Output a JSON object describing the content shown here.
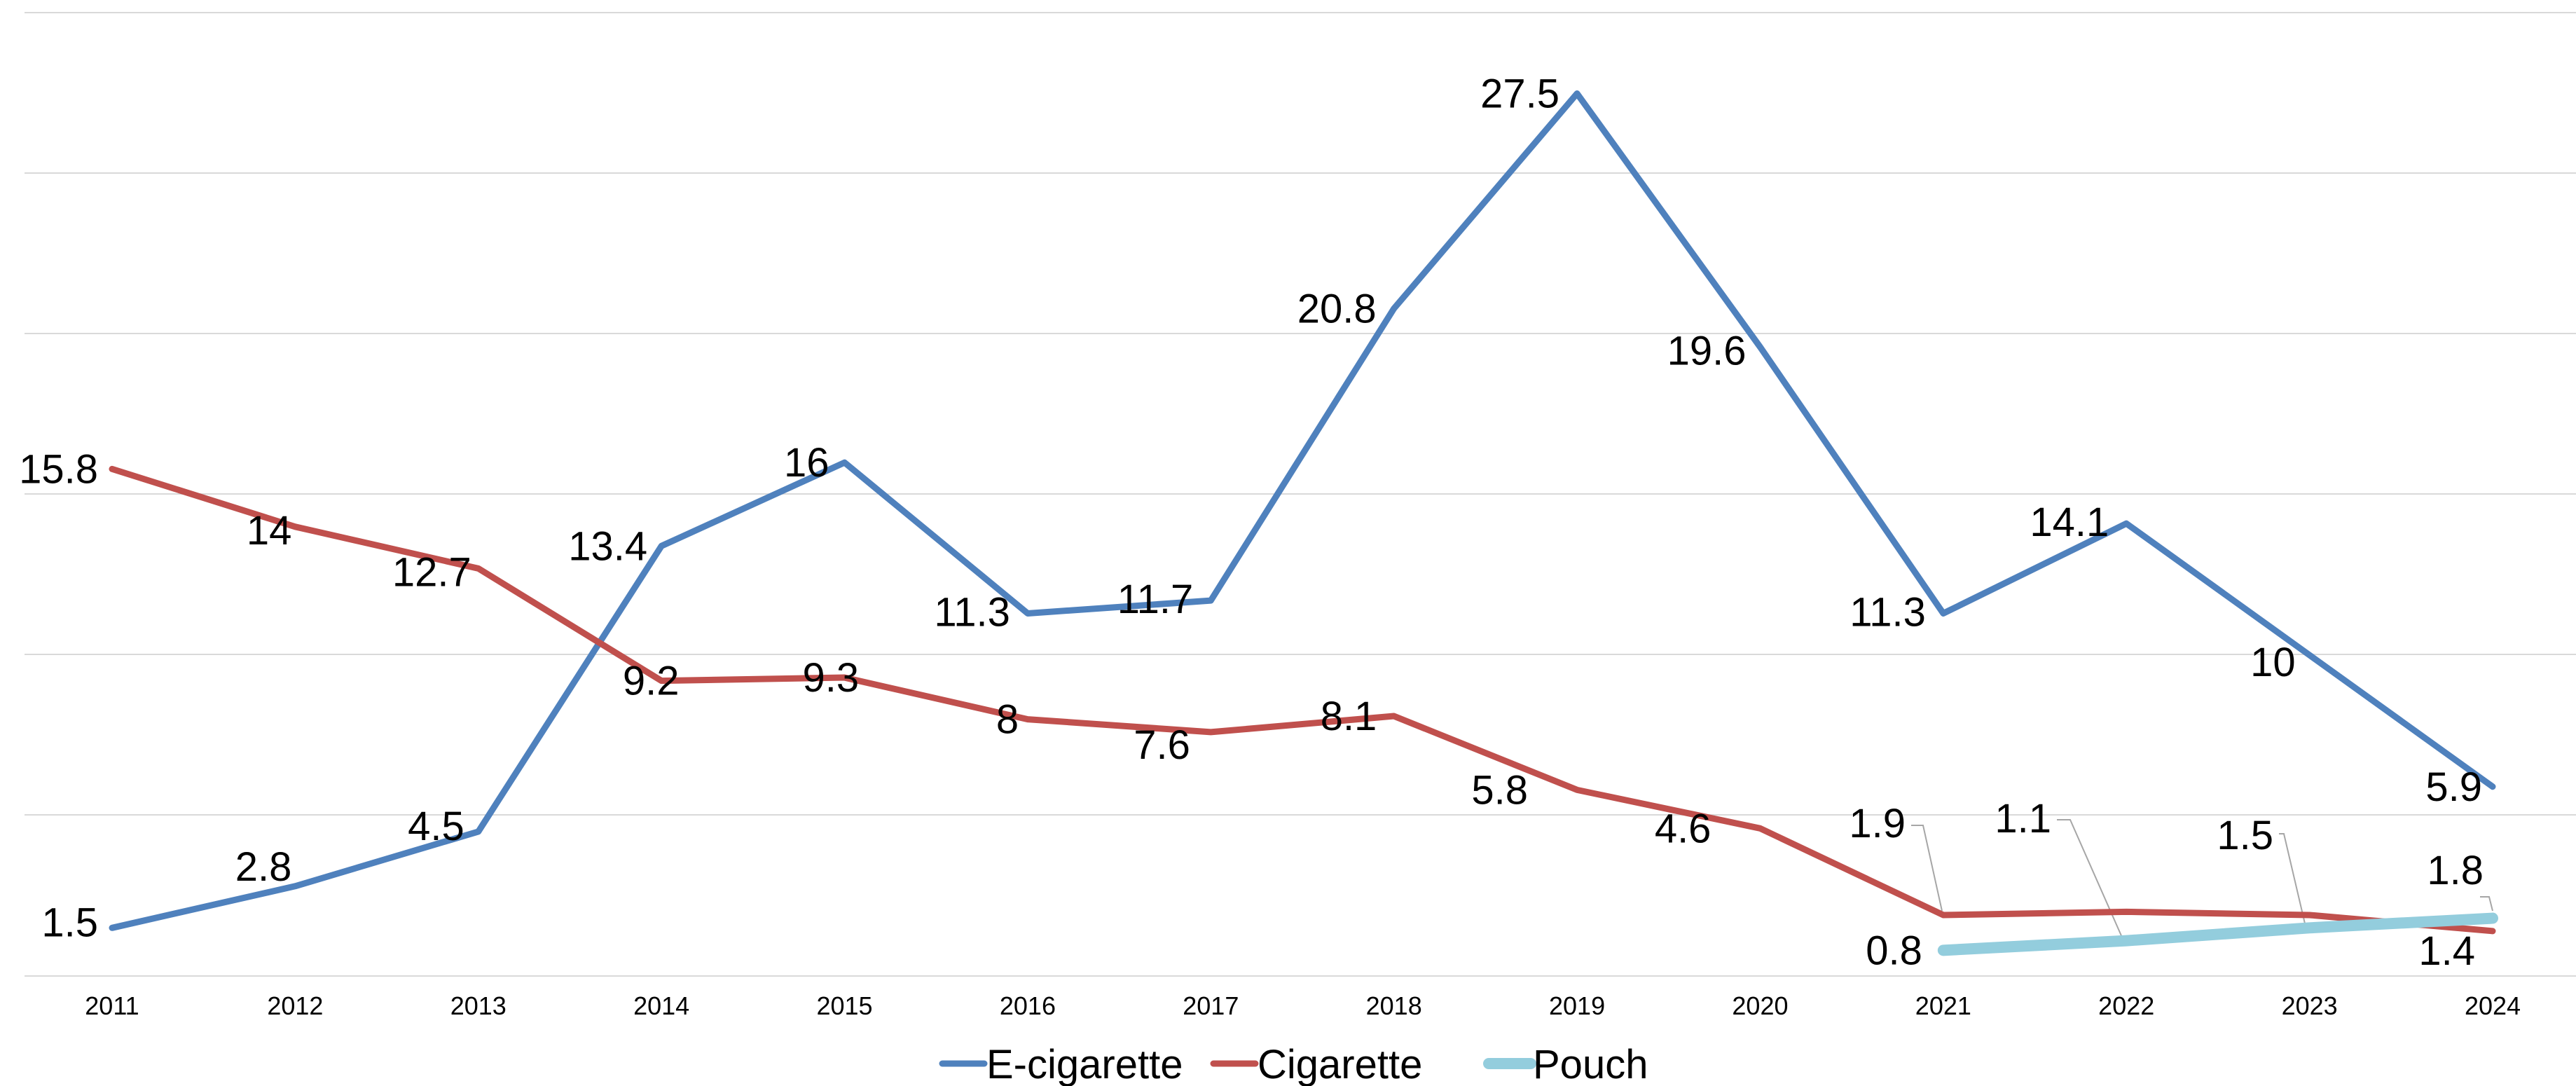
{
  "chart_data": {
    "type": "line",
    "title": "",
    "xlabel": "",
    "ylabel": "",
    "categories": [
      "2011",
      "2012",
      "2013",
      "2014",
      "2015",
      "2016",
      "2017",
      "2018",
      "2019",
      "2020",
      "2021",
      "2022",
      "2023",
      "2024"
    ],
    "ylim": [
      0,
      30
    ],
    "grid": true,
    "legend_position": "bottom",
    "series": [
      {
        "name": "E-cigarette",
        "color": "#4f81bd",
        "values": [
          1.5,
          2.8,
          4.5,
          13.4,
          16,
          11.3,
          11.7,
          20.8,
          27.5,
          19.6,
          11.3,
          14.1,
          10,
          5.9
        ],
        "labels": [
          "1.5",
          "2.8",
          "4.5",
          "13.4",
          "16",
          "11.3",
          "11.7",
          "20.8",
          "27.5",
          "19.6",
          "11.3",
          "14.1",
          "10",
          "5.9"
        ]
      },
      {
        "name": "Cigarette",
        "color": "#c0504d",
        "values": [
          15.8,
          14,
          12.7,
          9.2,
          9.3,
          8,
          7.6,
          8.1,
          5.8,
          4.6,
          1.9,
          2.0,
          1.9,
          1.4
        ],
        "labels": [
          "15.8",
          "14",
          "12.7",
          "9.2",
          "9.3",
          "8",
          "7.6",
          "8.1",
          "5.8",
          "4.6",
          "1.9",
          "",
          "",
          "1.4"
        ]
      },
      {
        "name": "Pouch",
        "color": "#93cddd",
        "values": [
          null,
          null,
          null,
          null,
          null,
          null,
          null,
          null,
          null,
          null,
          0.8,
          1.1,
          1.5,
          1.8
        ],
        "labels": [
          "",
          "",
          "",
          "",
          "",
          "",
          "",
          "",
          "",
          "",
          "0.8",
          "1.1",
          "1.5",
          "1.8"
        ]
      }
    ]
  }
}
